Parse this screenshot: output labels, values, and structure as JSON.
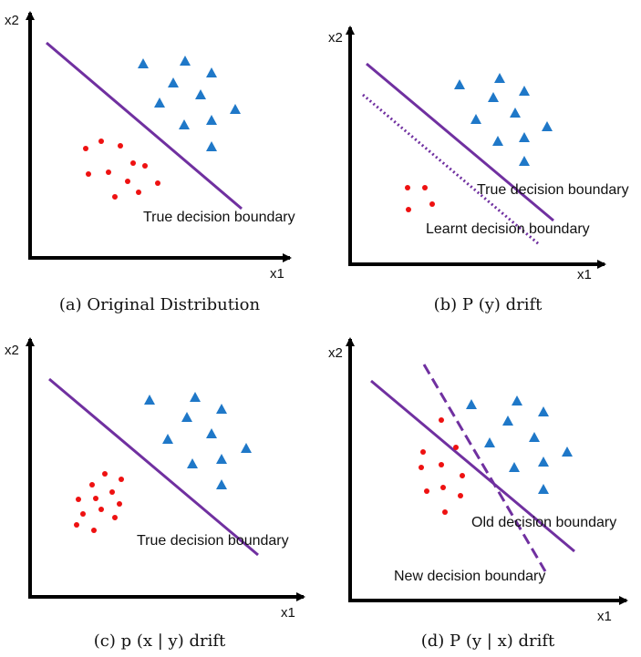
{
  "panels": [
    {
      "caption": "(a) Original Distribution",
      "x_axis_label": "x1",
      "y_axis_label": "x2",
      "boundary_labels": [
        "True decision boundary"
      ]
    },
    {
      "caption": "(b) P (y) drift",
      "x_axis_label": "x1",
      "y_axis_label": "x2",
      "boundary_labels": [
        "True decision boundary",
        "Learnt decision boundary"
      ]
    },
    {
      "caption": "(c) p (x | y) drift",
      "x_axis_label": "x1",
      "y_axis_label": "x2",
      "boundary_labels": [
        "True decision boundary"
      ]
    },
    {
      "caption": "(d) P (y | x) drift",
      "x_axis_label": "x1",
      "y_axis_label": "x2",
      "boundary_labels": [
        "Old decision boundary",
        "New decision boundary"
      ]
    }
  ],
  "colors": {
    "axis": "#000000",
    "boundary": "#7030a0",
    "class_dots": "#ee1111",
    "class_triangles": "#1f78c8"
  }
}
